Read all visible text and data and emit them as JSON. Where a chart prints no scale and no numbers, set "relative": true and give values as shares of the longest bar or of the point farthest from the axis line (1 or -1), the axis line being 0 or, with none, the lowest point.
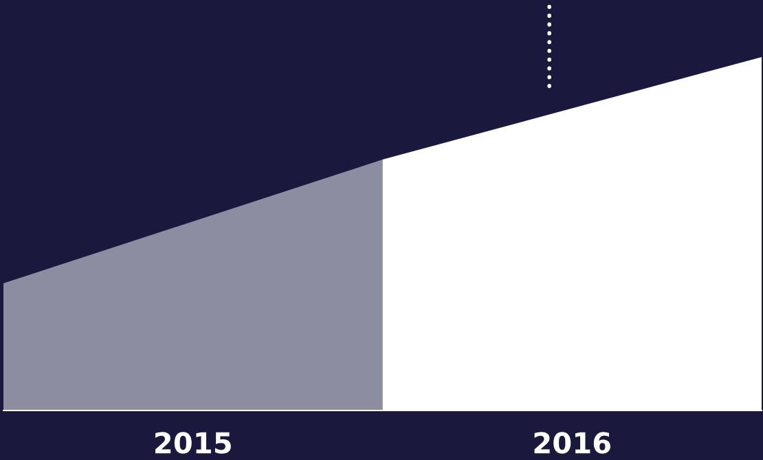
{
  "chart_data": {
    "type": "area",
    "relative": true,
    "xlim": [
      2014.5,
      2016.5
    ],
    "xticks": [
      2015,
      2016
    ],
    "series": [
      {
        "x": [
          2014.5,
          2015.5
        ],
        "values": [
          0.36,
          0.71
        ],
        "color": "#8c8da0"
      },
      {
        "x": [
          2015.5,
          2016.5
        ],
        "values": [
          0.71,
          1
        ],
        "color": "#ffffff"
      }
    ],
    "ref_lines": [
      {
        "axis": "x",
        "value": 2015.94,
        "color": "#ffffff",
        "line_style": "dotted"
      }
    ],
    "grid": false,
    "legend": false
  }
}
